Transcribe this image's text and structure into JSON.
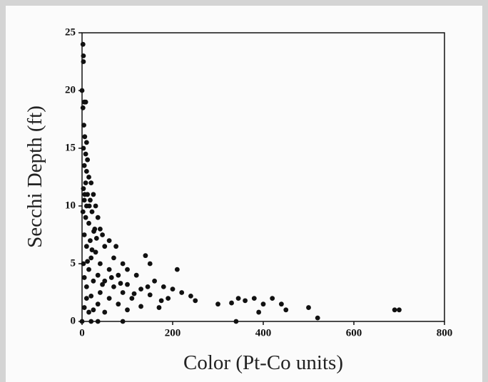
{
  "chart_data": {
    "type": "scatter",
    "xlabel": "Color (Pt-Co units)",
    "ylabel": "Secchi Depth (ft)",
    "color": "#111111",
    "xlim": [
      0,
      800
    ],
    "xticks": [
      0,
      200,
      400,
      600,
      800
    ],
    "ylim": [
      0,
      25
    ],
    "yticks": [
      0,
      5,
      10,
      15,
      20,
      25
    ],
    "grid": false,
    "x": [
      2,
      3,
      3,
      0,
      5,
      8,
      2,
      4,
      6,
      10,
      3,
      8,
      12,
      5,
      10,
      15,
      8,
      20,
      3,
      12,
      25,
      5,
      18,
      30,
      10,
      2,
      22,
      35,
      8,
      15,
      40,
      28,
      5,
      45,
      18,
      60,
      10,
      50,
      30,
      75,
      70,
      20,
      3,
      40,
      90,
      140,
      150,
      100,
      15,
      60,
      210,
      80,
      35,
      120,
      5,
      160,
      50,
      25,
      100,
      180,
      70,
      10,
      130,
      200,
      220,
      40,
      90,
      150,
      240,
      20,
      60,
      110,
      190,
      250,
      300,
      330,
      345,
      360,
      380,
      35,
      80,
      130,
      170,
      5,
      400,
      420,
      440,
      450,
      390,
      500,
      520,
      690,
      700,
      15,
      50,
      25,
      100,
      0,
      20,
      35,
      90,
      340,
      10,
      45,
      65,
      85,
      115,
      145,
      175,
      12,
      22,
      32,
      6,
      16,
      26
    ],
    "values": [
      24,
      23,
      22.5,
      20,
      19,
      19,
      18.5,
      17,
      16,
      15.5,
      15,
      14.5,
      14,
      13.5,
      13,
      12.5,
      12,
      12,
      11.5,
      11,
      11,
      10.5,
      10.5,
      10,
      10,
      9.5,
      9.5,
      9,
      9,
      8.5,
      8,
      8,
      7.5,
      7.5,
      7,
      7,
      6.5,
      6.5,
      6,
      6.5,
      5.5,
      5.5,
      5,
      5,
      5,
      5.7,
      5,
      4.5,
      4.5,
      4.5,
      4.5,
      4,
      4,
      4,
      3.8,
      3.5,
      3.5,
      3.5,
      3.2,
      3,
      3,
      3,
      2.8,
      2.8,
      2.5,
      2.5,
      2.5,
      2.3,
      2.2,
      2.2,
      2,
      2,
      2,
      1.8,
      1.5,
      1.6,
      2,
      1.8,
      2,
      1.5,
      1.5,
      1.3,
      1.2,
      1.2,
      1.5,
      2,
      1.5,
      1,
      0.8,
      1.2,
      0.3,
      1,
      1,
      0.8,
      0.8,
      1,
      1,
      0,
      0,
      0,
      0,
      0,
      2,
      3.2,
      3.8,
      3.3,
      2.4,
      3,
      1.8,
      5.2,
      6.2,
      7.2,
      11,
      10,
      7.8
    ]
  }
}
